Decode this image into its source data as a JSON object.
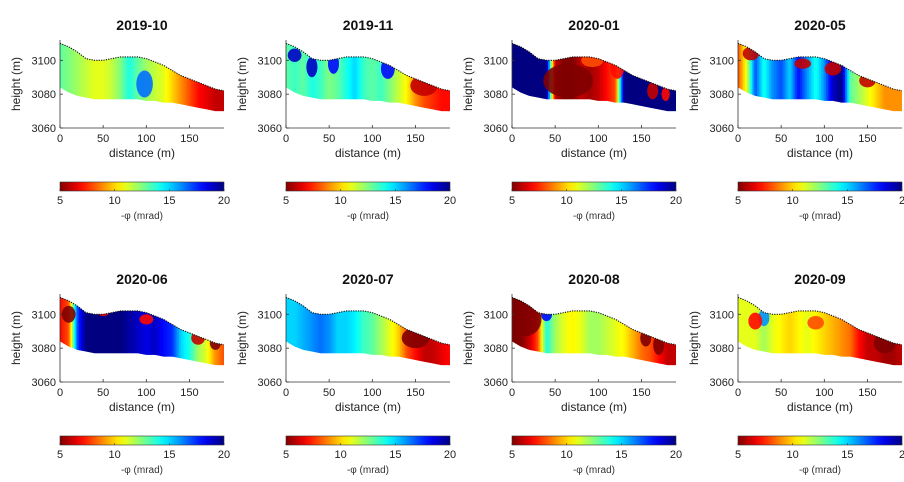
{
  "chart_data": {
    "type": "heatmap",
    "xlabel": "distance (m)",
    "ylabel": "height (m)",
    "xlim": [
      0,
      190
    ],
    "ylim": [
      3060,
      3112
    ],
    "x_ticks": [
      0,
      50,
      100,
      150
    ],
    "y_ticks": [
      3060,
      3080,
      3100
    ],
    "colorbar": {
      "label": "-φ (mrad)",
      "range": [
        5,
        20
      ],
      "ticks": [
        5,
        10,
        15,
        20
      ],
      "colormap": "jet-reversed (red = 5, blue = 20)"
    },
    "topography": {
      "distance": [
        0,
        10,
        20,
        30,
        40,
        50,
        60,
        70,
        80,
        90,
        100,
        110,
        120,
        130,
        140,
        150,
        160,
        170,
        180,
        190
      ],
      "surface_height": [
        3110,
        3108,
        3105,
        3101,
        3100,
        3100,
        3101,
        3102,
        3102,
        3102,
        3101,
        3099,
        3097,
        3094,
        3091,
        3089,
        3087,
        3085,
        3083,
        3082
      ],
      "bottom_height": [
        3084,
        3081,
        3079,
        3078,
        3077,
        3077,
        3077,
        3077,
        3077,
        3077,
        3076,
        3076,
        3075,
        3075,
        3074,
        3073,
        3072,
        3071,
        3070,
        3070
      ]
    },
    "panels": [
      {
        "name": "2019-10",
        "x_ticks_visible": [
          0,
          50,
          100,
          150
        ],
        "cb_ticks_visible": [
          "5",
          "10",
          "15",
          "20"
        ],
        "blobs": []
      },
      {
        "name": "2019-11",
        "x_ticks_visible": [
          0,
          50,
          100,
          150
        ],
        "cb_ticks_visible": [
          "5",
          "10",
          "15",
          "20"
        ],
        "blobs": []
      },
      {
        "name": "2020-01",
        "x_ticks_visible": [
          0,
          50,
          100,
          150
        ],
        "cb_ticks_visible": [
          "5",
          "10",
          "15",
          "20"
        ],
        "blobs": []
      },
      {
        "name": "2020-05",
        "x_ticks_visible": [
          0,
          50,
          100,
          150
        ],
        "cb_ticks_visible": [
          "5",
          "10",
          "15",
          "2"
        ],
        "blobs": []
      },
      {
        "name": "2020-06",
        "x_ticks_visible": [
          0,
          50,
          100,
          150
        ],
        "cb_ticks_visible": [
          "5",
          "10",
          "15",
          "20"
        ],
        "blobs": []
      },
      {
        "name": "2020-07",
        "x_ticks_visible": [
          0,
          50,
          100,
          150
        ],
        "cb_ticks_visible": [
          "5",
          "10",
          "15",
          "20"
        ],
        "blobs": []
      },
      {
        "name": "2020-08",
        "x_ticks_visible": [
          0,
          50,
          100,
          150
        ],
        "cb_ticks_visible": [
          "5",
          "10",
          "15",
          "20"
        ],
        "blobs": []
      },
      {
        "name": "2020-09",
        "x_ticks_visible": [
          0,
          50,
          100,
          150
        ],
        "cb_ticks_visible": [
          "5",
          "10",
          "15",
          "2"
        ],
        "blobs": []
      }
    ],
    "panel_values": [
      {
        "base": [
          13,
          12.5,
          12,
          11.5,
          11,
          11,
          11.5,
          12.5,
          14,
          13,
          12,
          11.5,
          11,
          10,
          9,
          8,
          7,
          6.5,
          6,
          6
        ],
        "spots": [
          [
            98,
            3086,
            6,
            8,
            16.5
          ]
        ]
      },
      {
        "base": [
          13,
          13.5,
          13,
          14,
          13.5,
          12.5,
          13,
          14,
          15,
          13.5,
          13,
          13.5,
          12.5,
          11.5,
          10.5,
          9,
          8,
          7.5,
          7,
          7
        ],
        "spots": [
          [
            10,
            3103,
            5,
            4,
            19
          ],
          [
            30,
            3096,
            4,
            6,
            19
          ],
          [
            55,
            3098,
            4,
            6,
            18
          ],
          [
            118,
            3095,
            5,
            6,
            18
          ],
          [
            160,
            3085,
            10,
            6,
            6
          ]
        ]
      },
      {
        "base": [
          20,
          20,
          20,
          20,
          20,
          6,
          5,
          5,
          6,
          5.5,
          6,
          7,
          8,
          20,
          20,
          20,
          20,
          20,
          20,
          20
        ],
        "spots": [
          [
            65,
            3088,
            18,
            10,
            5
          ],
          [
            93,
            3100,
            8,
            4,
            8
          ],
          [
            122,
            3096,
            5,
            7,
            7
          ],
          [
            163,
            3082,
            4,
            5,
            6
          ],
          [
            178,
            3080,
            3,
            4,
            7
          ]
        ]
      },
      {
        "base": [
          8,
          11,
          17,
          14,
          16,
          17,
          15,
          18,
          16,
          14,
          16,
          19,
          20,
          13,
          12,
          11,
          10,
          9,
          9,
          9
        ],
        "spots": [
          [
            75,
            3098,
            6,
            3,
            6
          ],
          [
            110,
            3095,
            6,
            4,
            6
          ],
          [
            150,
            3088,
            6,
            4,
            6
          ],
          [
            15,
            3104,
            6,
            4,
            6
          ]
        ]
      },
      {
        "base": [
          7,
          8,
          17,
          20,
          20,
          20,
          20,
          20,
          19.5,
          19,
          18.5,
          19,
          18,
          17.5,
          15,
          14,
          12,
          11,
          9,
          8
        ],
        "spots": [
          [
            10,
            3100,
            5,
            5,
            5
          ],
          [
            50,
            3102,
            5,
            3,
            7
          ],
          [
            100,
            3097,
            5,
            3,
            7
          ],
          [
            160,
            3086,
            5,
            4,
            6
          ],
          [
            180,
            3083,
            4,
            4,
            5
          ]
        ]
      },
      {
        "base": [
          15,
          15,
          15.5,
          16,
          16.5,
          16,
          15,
          15,
          14.5,
          13.5,
          13,
          12,
          11,
          10,
          8,
          7,
          6,
          6,
          6.5,
          7
        ],
        "spots": [
          [
            150,
            3086,
            10,
            6,
            5
          ]
        ]
      },
      {
        "base": [
          5,
          5,
          6,
          8,
          14,
          12,
          11,
          10.5,
          11,
          12,
          12,
          11.5,
          11,
          10.5,
          9.5,
          8.5,
          8,
          7,
          6,
          6
        ],
        "spots": [
          [
            15,
            3097,
            12,
            10,
            4.5
          ],
          [
            40,
            3100,
            4,
            4,
            18
          ],
          [
            170,
            3082,
            4,
            6,
            4.5
          ],
          [
            155,
            3086,
            4,
            5,
            5
          ]
        ]
      },
      {
        "base": [
          11,
          11,
          11,
          12,
          11,
          10.5,
          10,
          10.5,
          11,
          10.5,
          10,
          9.5,
          9,
          8.5,
          7,
          6,
          6,
          5.5,
          5.5,
          6
        ],
        "spots": [
          [
            30,
            3098,
            4,
            5,
            16
          ],
          [
            20,
            3096,
            5,
            5,
            7
          ],
          [
            90,
            3095,
            6,
            4,
            8
          ],
          [
            170,
            3083,
            8,
            6,
            5
          ]
        ]
      }
    ]
  }
}
